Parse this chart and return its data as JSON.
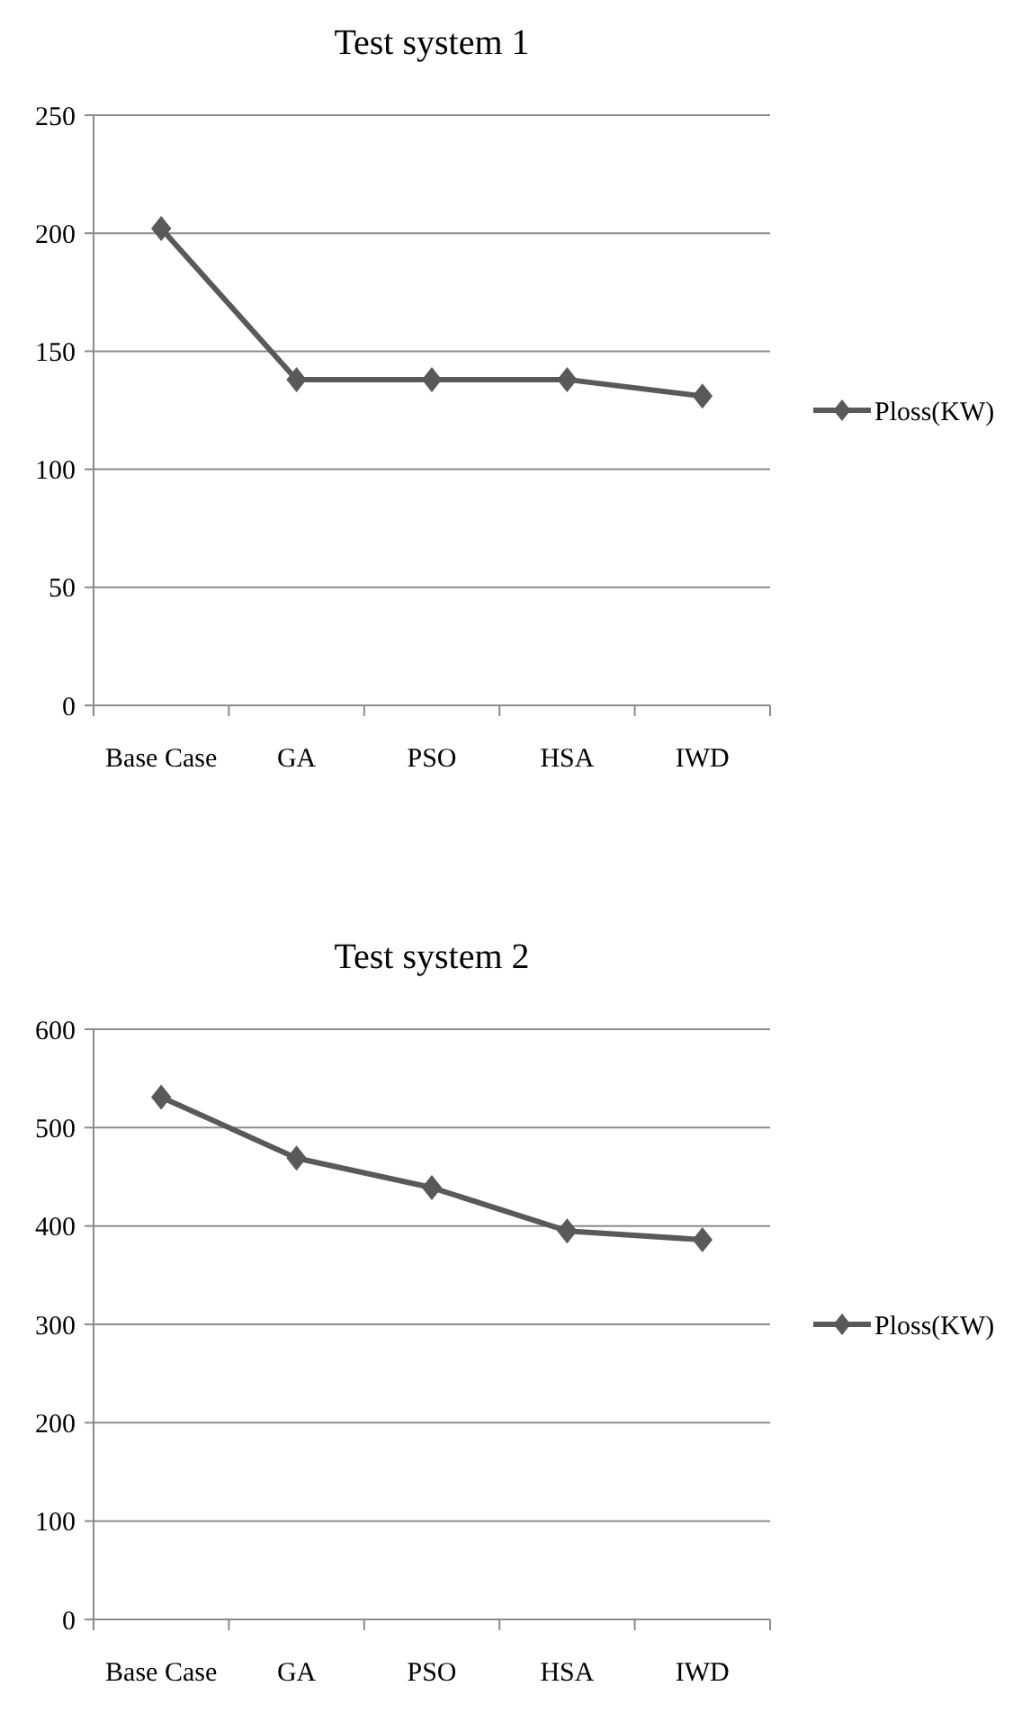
{
  "chart_data": [
    {
      "type": "line",
      "title": "Test system 1",
      "categories": [
        "Base Case",
        "GA",
        "PSO",
        "HSA",
        "IWD"
      ],
      "series": [
        {
          "name": "Ploss(KW)",
          "color": "#595959",
          "values": [
            202,
            138,
            138,
            138,
            131
          ]
        }
      ],
      "ylim": [
        0,
        250
      ],
      "yticks": [
        0,
        50,
        100,
        150,
        200,
        250
      ],
      "grid": "y",
      "legend": "right",
      "marker": "diamond",
      "line_style": "solid"
    },
    {
      "type": "line",
      "title": "Test system 2",
      "categories": [
        "Base Case",
        "GA",
        "PSO",
        "HSA",
        "IWD"
      ],
      "series": [
        {
          "name": "Ploss(KW)",
          "color": "#595959",
          "values": [
            531,
            469,
            439,
            395,
            386
          ]
        }
      ],
      "ylim": [
        0,
        600
      ],
      "yticks": [
        0,
        100,
        200,
        300,
        400,
        500,
        600
      ],
      "grid": "y",
      "legend": "right",
      "marker": "diamond",
      "line_style": "solid"
    }
  ]
}
